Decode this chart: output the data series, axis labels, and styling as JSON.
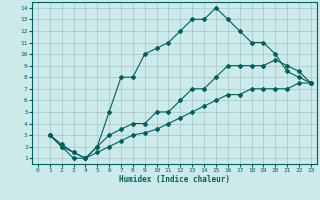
{
  "xlabel": "Humidex (Indice chaleur)",
  "bg_color": "#cceaea",
  "grid_color": "#aacccc",
  "line_color": "#006060",
  "xlim": [
    -0.5,
    23.5
  ],
  "ylim": [
    0.5,
    14.5
  ],
  "xticks": [
    0,
    1,
    2,
    3,
    4,
    5,
    6,
    7,
    8,
    9,
    10,
    11,
    12,
    13,
    14,
    15,
    16,
    17,
    18,
    19,
    20,
    21,
    22,
    23
  ],
  "yticks": [
    1,
    2,
    3,
    4,
    5,
    6,
    7,
    8,
    9,
    10,
    11,
    12,
    13,
    14
  ],
  "line1_x": [
    1,
    2,
    3,
    4,
    5,
    6,
    7,
    8,
    9,
    10,
    11,
    12,
    13,
    14,
    15,
    16,
    17,
    18,
    19,
    20,
    21,
    22,
    23
  ],
  "line1_y": [
    3,
    2,
    1,
    1,
    2,
    5,
    8,
    8,
    10,
    10.5,
    11,
    12,
    13,
    13,
    14,
    13,
    12,
    11,
    11,
    10,
    8.5,
    8,
    7.5
  ],
  "line2_x": [
    1,
    2,
    3,
    4,
    5,
    6,
    7,
    8,
    9,
    10,
    11,
    12,
    13,
    14,
    15,
    16,
    17,
    18,
    19,
    20,
    21,
    22,
    23
  ],
  "line2_y": [
    3,
    2,
    1.5,
    1,
    2,
    3,
    3.5,
    4,
    4,
    5,
    5,
    6,
    7,
    7,
    8,
    9,
    9,
    9,
    9,
    9.5,
    9,
    8.5,
    7.5
  ],
  "line3_x": [
    1,
    2,
    3,
    4,
    5,
    6,
    7,
    8,
    9,
    10,
    11,
    12,
    13,
    14,
    15,
    16,
    17,
    18,
    19,
    20,
    21,
    22,
    23
  ],
  "line3_y": [
    3,
    2.2,
    1.5,
    1,
    1.5,
    2,
    2.5,
    3,
    3.2,
    3.5,
    4,
    4.5,
    5,
    5.5,
    6,
    6.5,
    6.5,
    7,
    7,
    7,
    7,
    7.5,
    7.5
  ]
}
